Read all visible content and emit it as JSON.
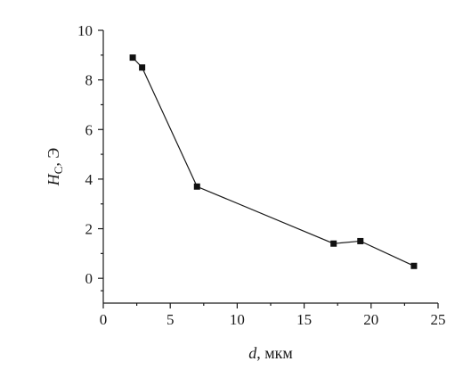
{
  "chart_data": {
    "type": "line",
    "xlabel": {
      "symbol": "d",
      "unit": ", мкм"
    },
    "ylabel": {
      "symbol": "H",
      "subscript": "C",
      "unit": ", Э"
    },
    "xlim": [
      0,
      25
    ],
    "ylim": [
      -1,
      10
    ],
    "x_ticks": [
      0,
      5,
      10,
      15,
      20,
      25
    ],
    "y_ticks": [
      0,
      2,
      4,
      6,
      8,
      10
    ],
    "grid": false,
    "colors": {
      "line": "#1a1a1a",
      "marker": "#111111"
    },
    "series": [
      {
        "marker": "square",
        "points": [
          {
            "x": 2.2,
            "y": 8.9
          },
          {
            "x": 2.9,
            "y": 8.5
          },
          {
            "x": 7.0,
            "y": 3.7
          },
          {
            "x": 17.2,
            "y": 1.4
          },
          {
            "x": 19.2,
            "y": 1.5
          },
          {
            "x": 23.2,
            "y": 0.5
          }
        ]
      }
    ]
  }
}
